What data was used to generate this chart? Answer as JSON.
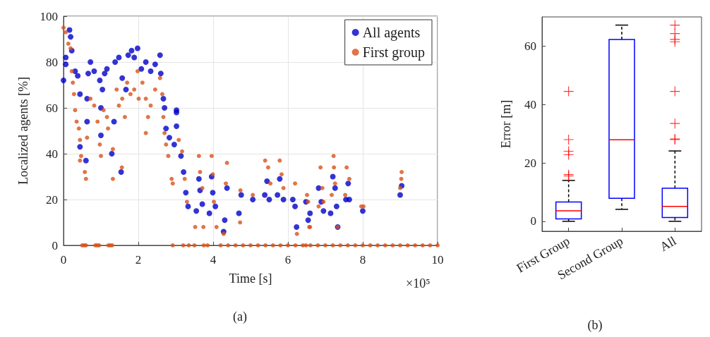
{
  "chart_data": [
    {
      "type": "scatter",
      "xlabel": "Time [s]",
      "ylabel": "Localized agents [%]",
      "annotations": [
        "×10⁵",
        "(a)"
      ],
      "xlim": [
        0,
        10
      ],
      "xticks": [
        0,
        2,
        4,
        6,
        8,
        10
      ],
      "ylim": [
        0,
        100
      ],
      "yticks": [
        0,
        20,
        40,
        60,
        80,
        100
      ],
      "grid": true,
      "legend": "top right",
      "marker": "circle",
      "series": [
        {
          "name": "All agents",
          "color": "#0000c8",
          "x": [
            0,
            0.06,
            0.06,
            0.16,
            0.19,
            0.22,
            0.31,
            0.38,
            0.44,
            0.44,
            0.6,
            0.63,
            0.63,
            0.66,
            0.72,
            0.82,
            0.97,
            1.0,
            1.0,
            1.04,
            1.1,
            1.16,
            1.29,
            1.35,
            1.38,
            1.48,
            1.54,
            1.57,
            1.67,
            1.73,
            1.82,
            1.89,
            1.98,
            2.08,
            2.2,
            2.33,
            2.45,
            2.58,
            2.6,
            2.67,
            2.7,
            2.74,
            2.83,
            2.96,
            3.02,
            3.02,
            3.02,
            3.14,
            3.21,
            3.27,
            3.33,
            3.55,
            3.62,
            3.65,
            3.71,
            3.9,
            3.96,
            3.99,
            4.06,
            4.28,
            4.31,
            4.37,
            4.69,
            4.75,
            5.06,
            5.38,
            5.44,
            5.5,
            5.72,
            5.78,
            5.88,
            6.13,
            6.19,
            6.23,
            6.48,
            6.54,
            6.59,
            6.82,
            6.89,
            6.95,
            7.14,
            7.2,
            7.26,
            7.3,
            7.33,
            7.55,
            7.61,
            7.64,
            8.0,
            9.0,
            9.04
          ],
          "values": [
            72,
            79,
            82,
            94,
            91,
            85,
            76,
            74,
            66,
            43,
            37,
            64,
            54,
            75,
            80,
            76,
            72,
            60,
            48,
            68,
            75,
            77,
            40,
            54,
            80,
            82,
            32,
            73,
            68,
            83,
            85,
            82,
            86,
            77,
            80,
            76,
            79,
            83,
            75,
            64,
            60,
            51,
            47,
            44,
            59,
            52,
            58,
            39,
            32,
            23,
            17,
            15,
            29,
            24,
            18,
            14,
            30,
            23,
            17,
            6,
            11,
            25,
            14,
            22,
            20,
            22,
            28,
            20,
            22,
            29,
            20,
            20,
            17,
            8,
            19,
            11,
            14,
            25,
            19,
            15,
            14,
            30,
            25,
            17,
            8,
            20,
            27,
            20,
            15,
            22,
            26
          ]
        },
        {
          "name": "First group",
          "color": "#d95319",
          "x": [
            0,
            0.06,
            0.13,
            0.19,
            0.22,
            0.25,
            0.28,
            0.31,
            0.35,
            0.41,
            0.44,
            0.44,
            0.47,
            0.5,
            0.55,
            0.57,
            0.6,
            0.6,
            0.63,
            0.72,
            0.82,
            0.85,
            0.9,
            0.91,
            0.95,
            0.97,
            1.0,
            1.07,
            1.16,
            1.19,
            1.2,
            1.25,
            1.3,
            1.32,
            1.32,
            1.42,
            1.48,
            1.56,
            1.57,
            1.64,
            1.7,
            1.79,
            1.89,
            1.98,
            2.01,
            2.11,
            2.2,
            2.2,
            2.26,
            2.33,
            2.45,
            2.58,
            2.64,
            2.67,
            2.7,
            2.74,
            2.8,
            2.89,
            2.92,
            2.92,
            3.08,
            3.17,
            3.2,
            3.24,
            3.3,
            3.35,
            3.5,
            3.52,
            3.62,
            3.65,
            3.71,
            3.74,
            3.75,
            3.85,
            3.96,
            3.99,
            4.02,
            4.09,
            4.2,
            4.28,
            4.34,
            4.37,
            4.4,
            4.6,
            4.72,
            4.73,
            4.8,
            5.0,
            5.06,
            5.2,
            5.39,
            5.4,
            5.47,
            5.53,
            5.6,
            5.78,
            5.8,
            5.83,
            5.88,
            6.0,
            6.19,
            6.2,
            6.24,
            6.4,
            6.48,
            6.51,
            6.54,
            6.57,
            6.59,
            6.6,
            6.8,
            6.82,
            6.87,
            6.92,
            6.95,
            7.0,
            7.17,
            7.2,
            7.22,
            7.23,
            7.26,
            7.33,
            7.4,
            7.53,
            7.57,
            7.6,
            7.64,
            7.8,
            7.96,
            8.0,
            8.02,
            8.2,
            8.4,
            8.6,
            8.8,
            9.0,
            9.0,
            9.03,
            9.04,
            9.2,
            9.4,
            9.6,
            9.8,
            10
          ],
          "values": [
            95,
            93,
            88,
            86,
            76,
            71,
            66,
            59,
            54,
            51,
            46,
            37,
            39,
            0,
            0,
            32,
            29,
            0,
            47,
            64,
            61,
            0,
            0,
            54,
            0,
            44,
            39,
            59,
            56,
            51,
            0,
            0,
            0,
            42,
            29,
            68,
            61,
            34,
            64,
            56,
            71,
            66,
            68,
            76,
            64,
            71,
            64,
            49,
            56,
            61,
            68,
            73,
            66,
            56,
            49,
            44,
            39,
            29,
            27,
            0,
            46,
            41,
            0,
            29,
            19,
            0,
            0,
            8,
            39,
            32,
            25,
            8,
            0,
            0,
            39,
            31,
            19,
            8,
            0,
            5,
            27,
            36,
            0,
            0,
            10,
            24,
            0,
            0,
            22,
            0,
            37,
            0,
            34,
            27,
            0,
            37,
            0,
            31,
            25,
            0,
            27,
            0,
            5,
            0,
            0,
            22,
            19,
            8,
            8,
            0,
            0,
            17,
            34,
            25,
            19,
            0,
            22,
            0,
            39,
            34,
            27,
            8,
            0,
            22,
            34,
            0,
            29,
            0,
            17,
            0,
            17,
            0,
            0,
            0,
            0,
            0,
            25,
            29,
            32,
            0,
            0,
            0,
            0,
            0
          ]
        }
      ]
    },
    {
      "type": "box",
      "ylabel": "Error [m]",
      "annotations": [
        "(b)"
      ],
      "categories": [
        "First Group",
        "Second Group",
        "All"
      ],
      "ylim": [
        -3.4,
        70
      ],
      "yticks": [
        0,
        20,
        40,
        60
      ],
      "grid": false,
      "color": "#0000ff",
      "boxes": [
        {
          "low": 0,
          "q1": 0.8,
          "median": 3.6,
          "q3": 6.6,
          "high": 14,
          "outliers": [
            15.5,
            16,
            22.8,
            24,
            28,
            44.5
          ]
        },
        {
          "low": 4.1,
          "q1": 7.9,
          "median": 27.9,
          "q3": 62.3,
          "high": 67.2
        },
        {
          "low": 0,
          "q1": 1.3,
          "median": 5.1,
          "q3": 11.3,
          "high": 24.1,
          "outliers": [
            28,
            28.2,
            33.5,
            44.5,
            61.5,
            62.3,
            64.3,
            67.2
          ]
        }
      ]
    }
  ]
}
